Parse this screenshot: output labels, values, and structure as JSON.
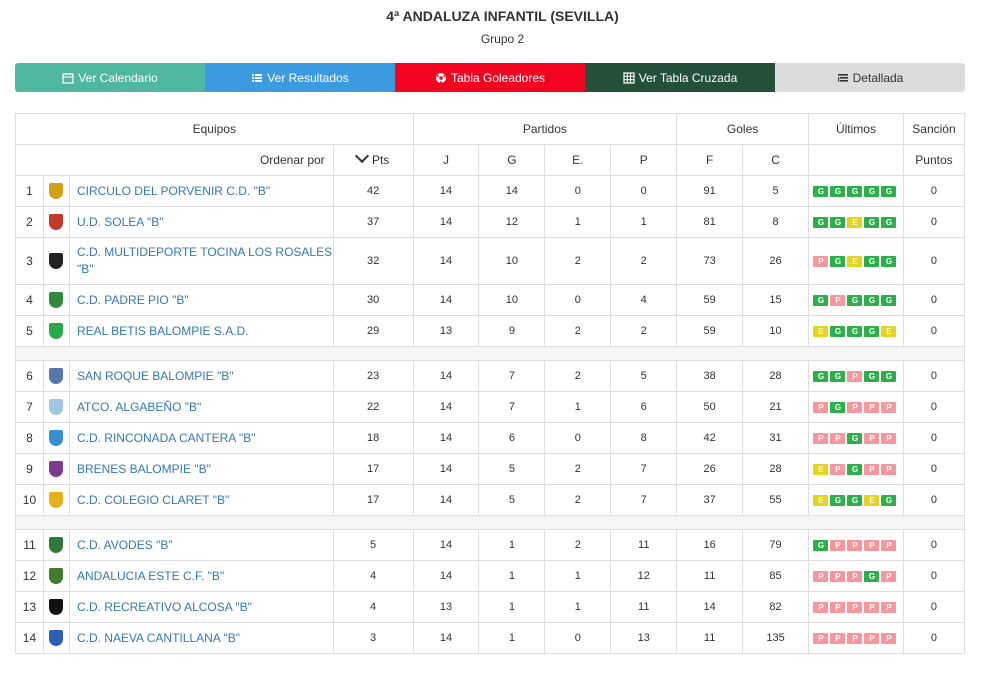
{
  "header": {
    "title": "4ª ANDALUZA INFANTIL (SEVILLA)",
    "subtitle": "Grupo 2"
  },
  "toolbar": [
    {
      "label": "Ver Calendario",
      "icon": "calendar-icon"
    },
    {
      "label": "Ver Resultados",
      "icon": "list-icon"
    },
    {
      "label": "Tabla Goleadores",
      "icon": "soccer-ball-icon"
    },
    {
      "label": "Ver Tabla Cruzada",
      "icon": "grid-icon"
    },
    {
      "label": "Detallada",
      "icon": "detail-list-icon"
    }
  ],
  "table": {
    "group_headers": {
      "equipos": "Equipos",
      "partidos": "Partidos",
      "goles": "Goles",
      "ultimos": "Últimos",
      "sancion": "Sanción"
    },
    "sub_headers": {
      "sort": "Ordenar por",
      "pts": "Pts",
      "j": "J",
      "g": "G",
      "e": "E.",
      "p": "P",
      "f": "F",
      "c": "C",
      "puntos": "Puntos"
    },
    "rows": [
      {
        "pos": "1",
        "team": "CIRCULO DEL PORVENIR C.D. \"B\"",
        "pts": "42",
        "j": "14",
        "g": "14",
        "e": "0",
        "p": "0",
        "f": "91",
        "c": "5",
        "last": [
          "G",
          "G",
          "G",
          "G",
          "G"
        ],
        "sancion": "0",
        "crest": "#d4a017"
      },
      {
        "pos": "2",
        "team": "U.D. SOLEA \"B\"",
        "pts": "37",
        "j": "14",
        "g": "12",
        "e": "1",
        "p": "1",
        "f": "81",
        "c": "8",
        "last": [
          "G",
          "G",
          "E",
          "G",
          "G"
        ],
        "sancion": "0",
        "crest": "#c0392b"
      },
      {
        "pos": "3",
        "team": "C.D. MULTIDEPORTE TOCINA LOS ROSALES \"B\"",
        "pts": "32",
        "j": "14",
        "g": "10",
        "e": "2",
        "p": "2",
        "f": "73",
        "c": "26",
        "last": [
          "P",
          "G",
          "E",
          "G",
          "G"
        ],
        "sancion": "0",
        "crest": "#222222"
      },
      {
        "pos": "4",
        "team": "C.D. PADRE PIO \"B\"",
        "pts": "30",
        "j": "14",
        "g": "10",
        "e": "0",
        "p": "4",
        "f": "59",
        "c": "15",
        "last": [
          "G",
          "P",
          "G",
          "G",
          "G"
        ],
        "sancion": "0",
        "crest": "#2e8b3e"
      },
      {
        "pos": "5",
        "team": "REAL BETIS BALOMPIE S.A.D.",
        "pts": "29",
        "j": "13",
        "g": "9",
        "e": "2",
        "p": "2",
        "f": "59",
        "c": "10",
        "last": [
          "E",
          "G",
          "G",
          "G",
          "E"
        ],
        "sancion": "0",
        "crest": "#2aa84a"
      },
      {
        "pos": "6",
        "team": "SAN ROQUE BALOMPIE \"B\"",
        "pts": "23",
        "j": "14",
        "g": "7",
        "e": "2",
        "p": "5",
        "f": "38",
        "c": "28",
        "last": [
          "G",
          "G",
          "P",
          "G",
          "G"
        ],
        "sancion": "0",
        "crest": "#5577aa"
      },
      {
        "pos": "7",
        "team": "ATCO. ALGABEÑO \"B\"",
        "pts": "22",
        "j": "14",
        "g": "7",
        "e": "1",
        "p": "6",
        "f": "50",
        "c": "21",
        "last": [
          "P",
          "G",
          "P",
          "P",
          "P"
        ],
        "sancion": "0",
        "crest": "#9ec9e0"
      },
      {
        "pos": "8",
        "team": "C.D. RINCONADA CANTERA \"B\"",
        "pts": "18",
        "j": "14",
        "g": "6",
        "e": "0",
        "p": "8",
        "f": "42",
        "c": "31",
        "last": [
          "P",
          "P",
          "G",
          "P",
          "P"
        ],
        "sancion": "0",
        "crest": "#3a8fd0"
      },
      {
        "pos": "9",
        "team": "BRENES BALOMPIE \"B\"",
        "pts": "17",
        "j": "14",
        "g": "5",
        "e": "2",
        "p": "7",
        "f": "26",
        "c": "28",
        "last": [
          "E",
          "P",
          "G",
          "P",
          "P"
        ],
        "sancion": "0",
        "crest": "#7a3b8e"
      },
      {
        "pos": "10",
        "team": "C.D. COLEGIO CLARET \"B\"",
        "pts": "17",
        "j": "14",
        "g": "5",
        "e": "2",
        "p": "7",
        "f": "37",
        "c": "55",
        "last": [
          "E",
          "G",
          "G",
          "E",
          "G"
        ],
        "sancion": "0",
        "crest": "#e3b21b"
      },
      {
        "pos": "11",
        "team": "C.D. AVODES \"B\"",
        "pts": "5",
        "j": "14",
        "g": "1",
        "e": "2",
        "p": "11",
        "f": "16",
        "c": "79",
        "last": [
          "G",
          "P",
          "P",
          "P",
          "P"
        ],
        "sancion": "0",
        "crest": "#2f7a3a"
      },
      {
        "pos": "12",
        "team": "ANDALUCIA ESTE C.F. \"B\"",
        "pts": "4",
        "j": "14",
        "g": "1",
        "e": "1",
        "p": "12",
        "f": "11",
        "c": "85",
        "last": [
          "P",
          "P",
          "P",
          "G",
          "P"
        ],
        "sancion": "0",
        "crest": "#3f7d2c"
      },
      {
        "pos": "13",
        "team": "C.D. RECREATIVO ALCOSA \"B\"",
        "pts": "4",
        "j": "13",
        "g": "1",
        "e": "1",
        "p": "11",
        "f": "14",
        "c": "82",
        "last": [
          "P",
          "P",
          "P",
          "P",
          "P"
        ],
        "sancion": "0",
        "crest": "#111111"
      },
      {
        "pos": "14",
        "team": "C.D. NAEVA CANTILLANA \"B\"",
        "pts": "3",
        "j": "14",
        "g": "1",
        "e": "0",
        "p": "13",
        "f": "11",
        "c": "135",
        "last": [
          "P",
          "P",
          "P",
          "P",
          "P"
        ],
        "sancion": "0",
        "crest": "#2b5fb3"
      }
    ]
  }
}
